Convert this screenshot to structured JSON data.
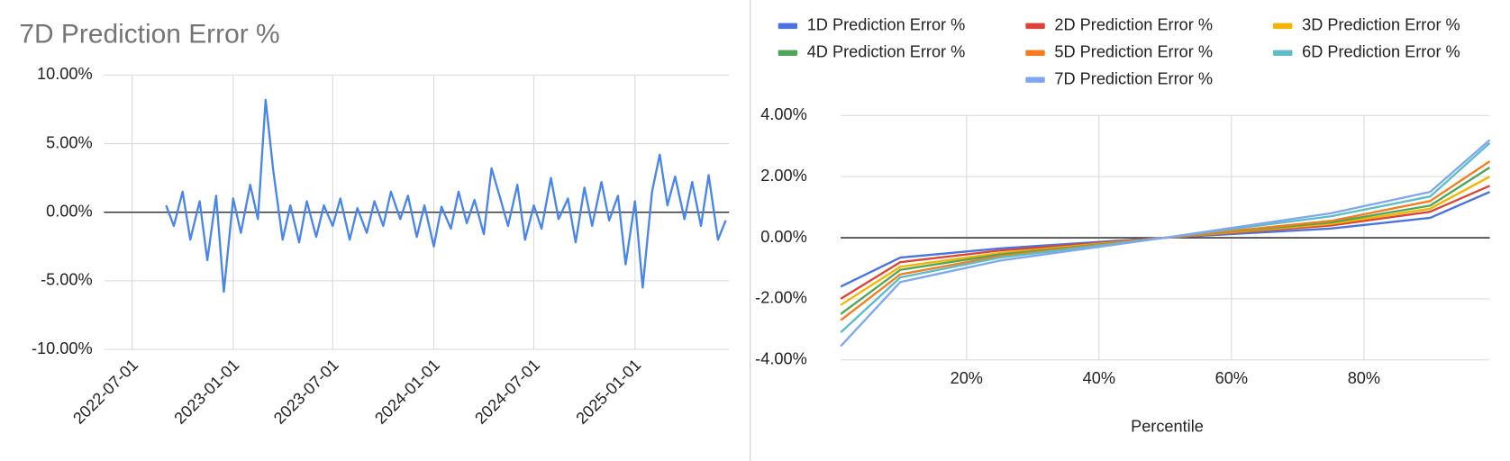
{
  "chart_data": [
    {
      "type": "line",
      "title": "7D Prediction Error %",
      "color": "#4a86e8",
      "grid": true,
      "x": [
        "2022-09-01",
        "2022-09-15",
        "2022-10-01",
        "2022-10-15",
        "2022-11-01",
        "2022-11-15",
        "2022-12-01",
        "2022-12-15",
        "2023-01-01",
        "2023-01-15",
        "2023-02-01",
        "2023-02-15",
        "2023-03-01",
        "2023-03-15",
        "2023-04-01",
        "2023-04-15",
        "2023-05-01",
        "2023-05-15",
        "2023-06-01",
        "2023-06-15",
        "2023-07-01",
        "2023-07-15",
        "2023-08-01",
        "2023-08-15",
        "2023-09-01",
        "2023-09-15",
        "2023-10-01",
        "2023-10-15",
        "2023-11-01",
        "2023-11-15",
        "2023-12-01",
        "2023-12-15",
        "2024-01-01",
        "2024-01-15",
        "2024-02-01",
        "2024-02-15",
        "2024-03-01",
        "2024-03-15",
        "2024-04-01",
        "2024-04-15",
        "2024-05-01",
        "2024-05-15",
        "2024-06-01",
        "2024-06-15",
        "2024-07-01",
        "2024-07-15",
        "2024-08-01",
        "2024-08-15",
        "2024-09-01",
        "2024-09-15",
        "2024-10-01",
        "2024-10-15",
        "2024-11-01",
        "2024-11-15",
        "2024-12-01",
        "2024-12-15",
        "2025-01-01",
        "2025-01-15",
        "2025-02-01",
        "2025-02-15",
        "2025-03-01",
        "2025-03-15",
        "2025-04-01",
        "2025-04-15",
        "2025-05-01",
        "2025-05-15",
        "2025-06-01",
        "2025-06-15"
      ],
      "values": [
        0.5,
        -1.0,
        1.5,
        -2.0,
        0.8,
        -3.5,
        1.2,
        -5.8,
        1.0,
        -1.5,
        2.0,
        -0.5,
        8.2,
        3.0,
        -2.0,
        0.5,
        -2.2,
        0.8,
        -1.8,
        0.5,
        -1.0,
        1.0,
        -2.0,
        0.3,
        -1.5,
        0.8,
        -1.0,
        1.5,
        -0.5,
        1.2,
        -1.8,
        0.5,
        -2.5,
        0.4,
        -1.2,
        1.5,
        -0.8,
        0.9,
        -1.6,
        3.2,
        1.0,
        -1.0,
        2.0,
        -2.0,
        0.5,
        -1.2,
        2.5,
        -0.5,
        1.0,
        -2.2,
        1.8,
        -1.0,
        2.2,
        -0.6,
        1.2,
        -3.8,
        0.8,
        -5.5,
        1.5,
        4.2,
        0.5,
        2.6,
        -0.5,
        2.2,
        -1.0,
        2.7,
        -2.0,
        -0.6
      ],
      "xlim": [
        "2022-05-11",
        "2025-06-21"
      ],
      "xticks": [
        "2022-07-01",
        "2023-01-01",
        "2023-07-01",
        "2024-01-01",
        "2024-07-01",
        "2025-01-01"
      ],
      "ylim": [
        -10,
        10
      ],
      "yticks": [
        {
          "value": -10,
          "label": "-10.00%"
        },
        {
          "value": -5,
          "label": "-5.00%"
        },
        {
          "value": 0,
          "label": "0.00%"
        },
        {
          "value": 5,
          "label": "5.00%"
        },
        {
          "value": 10,
          "label": "10.00%"
        }
      ]
    },
    {
      "type": "line",
      "x_label": "Percentile",
      "grid": true,
      "legend": "top",
      "x": [
        1,
        10,
        25,
        50,
        75,
        90,
        99
      ],
      "series": [
        {
          "name": "1D Prediction Error %",
          "color": "#4a73e0",
          "values": [
            -1.6,
            -0.65,
            -0.35,
            0,
            0.3,
            0.65,
            1.5
          ]
        },
        {
          "name": "2D Prediction Error %",
          "color": "#db4437",
          "values": [
            -2.0,
            -0.8,
            -0.42,
            0,
            0.4,
            0.85,
            1.7
          ]
        },
        {
          "name": "3D Prediction Error %",
          "color": "#f4b400",
          "values": [
            -2.2,
            -0.95,
            -0.5,
            0,
            0.45,
            0.95,
            2.0
          ]
        },
        {
          "name": "4D Prediction Error %",
          "color": "#4fa65a",
          "values": [
            -2.5,
            -1.05,
            -0.55,
            0,
            0.5,
            1.05,
            2.3
          ]
        },
        {
          "name": "5D Prediction Error %",
          "color": "#f57c1f",
          "values": [
            -2.7,
            -1.2,
            -0.6,
            0,
            0.55,
            1.2,
            2.5
          ]
        },
        {
          "name": "6D Prediction Error %",
          "color": "#5bbdc6",
          "values": [
            -3.1,
            -1.3,
            -0.65,
            0,
            0.7,
            1.35,
            3.1
          ]
        },
        {
          "name": "7D Prediction Error %",
          "color": "#7ea7f0",
          "values": [
            -3.55,
            -1.45,
            -0.75,
            0,
            0.8,
            1.5,
            3.2
          ]
        }
      ],
      "xlim": [
        1,
        99
      ],
      "xticks": [
        {
          "value": 20,
          "label": "20%"
        },
        {
          "value": 40,
          "label": "40%"
        },
        {
          "value": 60,
          "label": "60%"
        },
        {
          "value": 80,
          "label": "80%"
        }
      ],
      "ylim": [
        -4,
        4
      ],
      "yticks": [
        {
          "value": -4,
          "label": "-4.00%"
        },
        {
          "value": -2,
          "label": "-2.00%"
        },
        {
          "value": 0,
          "label": "0.00%"
        },
        {
          "value": 2,
          "label": "2.00%"
        },
        {
          "value": 4,
          "label": "4.00%"
        }
      ]
    }
  ]
}
